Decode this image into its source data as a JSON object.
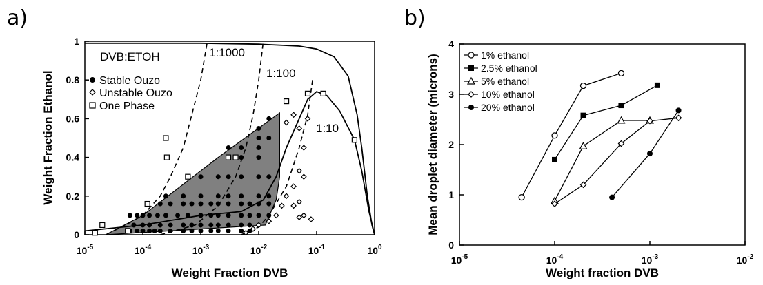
{
  "panel_a": {
    "label": "a)",
    "annotation_header": "DVB:ETOH",
    "ratio_labels": [
      "1:1000",
      "1:100",
      "1:10"
    ]
  },
  "panel_b": {
    "label": "b)"
  },
  "colors": {
    "region_fill": "#808080",
    "ink": "#000000"
  },
  "chart_data": [
    {
      "type": "scatter",
      "xscale": "log",
      "xlim": [
        1e-05,
        1
      ],
      "ylim": [
        0,
        1
      ],
      "xlabel": "Weight Fraction DVB",
      "ylabel": "Weight Fraction Ethanol",
      "xticks": [
        1e-05,
        0.0001,
        0.001,
        0.01,
        0.1,
        1
      ],
      "yticks": [
        0,
        0.2,
        0.4,
        0.6,
        0.8,
        1
      ],
      "legend_placement": "top-left",
      "series": [
        {
          "name": "Stable Ouzo",
          "marker": "filled-circle",
          "points": [
            [
              6e-05,
              0.02
            ],
            [
              8e-05,
              0.02
            ],
            [
              0.0001,
              0.02
            ],
            [
              0.00013,
              0.02
            ],
            [
              0.00016,
              0.02
            ],
            [
              0.0002,
              0.02
            ],
            [
              0.0003,
              0.02
            ],
            [
              0.0005,
              0.02
            ],
            [
              0.0007,
              0.02
            ],
            [
              0.001,
              0.02
            ],
            [
              0.0015,
              0.02
            ],
            [
              0.002,
              0.02
            ],
            [
              0.003,
              0.02
            ],
            [
              0.005,
              0.02
            ],
            [
              0.007,
              0.02
            ],
            [
              7e-05,
              0.05
            ],
            [
              0.0001,
              0.05
            ],
            [
              0.00013,
              0.05
            ],
            [
              0.0002,
              0.05
            ],
            [
              0.0003,
              0.05
            ],
            [
              0.0005,
              0.05
            ],
            [
              0.0007,
              0.05
            ],
            [
              0.001,
              0.05
            ],
            [
              0.0015,
              0.05
            ],
            [
              0.002,
              0.05
            ],
            [
              0.003,
              0.05
            ],
            [
              0.005,
              0.05
            ],
            [
              0.007,
              0.05
            ],
            [
              0.01,
              0.05
            ],
            [
              6e-05,
              0.1
            ],
            [
              8e-05,
              0.1
            ],
            [
              0.0001,
              0.1
            ],
            [
              0.00013,
              0.1
            ],
            [
              0.00018,
              0.1
            ],
            [
              0.00025,
              0.1
            ],
            [
              0.0004,
              0.1
            ],
            [
              0.0006,
              0.1
            ],
            [
              0.001,
              0.1
            ],
            [
              0.0015,
              0.1
            ],
            [
              0.002,
              0.1
            ],
            [
              0.003,
              0.1
            ],
            [
              0.005,
              0.1
            ],
            [
              0.007,
              0.1
            ],
            [
              0.01,
              0.1
            ],
            [
              0.015,
              0.1
            ],
            [
              0.0002,
              0.16
            ],
            [
              0.0003,
              0.16
            ],
            [
              0.0005,
              0.16
            ],
            [
              0.0007,
              0.16
            ],
            [
              0.001,
              0.16
            ],
            [
              0.0015,
              0.16
            ],
            [
              0.002,
              0.16
            ],
            [
              0.003,
              0.16
            ],
            [
              0.005,
              0.16
            ],
            [
              0.007,
              0.16
            ],
            [
              0.01,
              0.16
            ],
            [
              0.015,
              0.16
            ],
            [
              0.00025,
              0.2
            ],
            [
              0.0005,
              0.2
            ],
            [
              0.001,
              0.2
            ],
            [
              0.002,
              0.2
            ],
            [
              0.003,
              0.2
            ],
            [
              0.005,
              0.2
            ],
            [
              0.01,
              0.2
            ],
            [
              0.015,
              0.2
            ],
            [
              0.001,
              0.3
            ],
            [
              0.002,
              0.3
            ],
            [
              0.003,
              0.3
            ],
            [
              0.005,
              0.3
            ],
            [
              0.01,
              0.3
            ],
            [
              0.015,
              0.3
            ],
            [
              0.003,
              0.4
            ],
            [
              0.005,
              0.4
            ],
            [
              0.01,
              0.4
            ],
            [
              0.003,
              0.45
            ],
            [
              0.005,
              0.45
            ],
            [
              0.01,
              0.45
            ],
            [
              0.01,
              0.5
            ],
            [
              0.015,
              0.5
            ],
            [
              0.01,
              0.55
            ],
            [
              0.015,
              0.6
            ]
          ]
        },
        {
          "name": "Unstable Ouzo",
          "marker": "open-diamond",
          "points": [
            [
              0.006,
              0.01
            ],
            [
              0.008,
              0.03
            ],
            [
              0.01,
              0.05
            ],
            [
              0.015,
              0.07
            ],
            [
              0.02,
              0.1
            ],
            [
              0.025,
              0.15
            ],
            [
              0.03,
              0.2
            ],
            [
              0.04,
              0.25
            ],
            [
              0.05,
              0.33
            ],
            [
              0.06,
              0.45
            ],
            [
              0.07,
              0.6
            ],
            [
              0.05,
              0.55
            ],
            [
              0.04,
              0.62
            ],
            [
              0.03,
              0.58
            ],
            [
              0.04,
              0.15
            ],
            [
              0.05,
              0.17
            ],
            [
              0.06,
              0.3
            ],
            [
              0.05,
              0.09
            ],
            [
              0.08,
              0.08
            ],
            [
              0.06,
              0.1
            ]
          ]
        },
        {
          "name": "One Phase",
          "marker": "open-square",
          "points": [
            [
              1.5e-05,
              0.01
            ],
            [
              2e-05,
              0.05
            ],
            [
              5.5e-05,
              0.02
            ],
            [
              0.00012,
              0.16
            ],
            [
              0.00025,
              0.5
            ],
            [
              0.00026,
              0.4
            ],
            [
              0.0006,
              0.3
            ],
            [
              0.003,
              0.4
            ],
            [
              0.004,
              0.4
            ],
            [
              0.03,
              0.69
            ],
            [
              0.07,
              0.73
            ],
            [
              0.13,
              0.73
            ],
            [
              0.45,
              0.49
            ]
          ]
        }
      ],
      "boundary_curve": [
        [
          1e-05,
          0.02
        ],
        [
          0.0001,
          0.05
        ],
        [
          0.001,
          0.1
        ],
        [
          0.005,
          0.12
        ],
        [
          0.012,
          0.18
        ],
        [
          0.02,
          0.3
        ],
        [
          0.03,
          0.45
        ],
        [
          0.05,
          0.6
        ],
        [
          0.07,
          0.7
        ],
        [
          0.1,
          0.74
        ],
        [
          0.15,
          0.72
        ],
        [
          0.25,
          0.64
        ],
        [
          0.45,
          0.49
        ],
        [
          0.6,
          0.33
        ],
        [
          0.8,
          0.12
        ],
        [
          1,
          0
        ]
      ],
      "top_curve": [
        [
          1e-05,
          0.99
        ],
        [
          0.001,
          0.99
        ],
        [
          0.01,
          0.985
        ],
        [
          0.05,
          0.975
        ],
        [
          0.1,
          0.96
        ],
        [
          0.2,
          0.92
        ],
        [
          0.35,
          0.82
        ],
        [
          0.5,
          0.62
        ],
        [
          0.6,
          0.45
        ],
        [
          0.75,
          0.2
        ],
        [
          0.9,
          0.05
        ],
        [
          1,
          0
        ]
      ],
      "dashed_lines": [
        {
          "label": "1:1000",
          "points": [
            [
              2.3e-05,
              0
            ],
            [
              5e-05,
              0.05
            ],
            [
              0.0001,
              0.1
            ],
            [
              0.0002,
              0.2
            ],
            [
              0.0003,
              0.3
            ],
            [
              0.0005,
              0.45
            ],
            [
              0.0007,
              0.62
            ],
            [
              0.001,
              0.8
            ],
            [
              0.0013,
              1
            ]
          ]
        },
        {
          "label": "1:100",
          "points": [
            [
              0.0002,
              0
            ],
            [
              0.0008,
              0.05
            ],
            [
              0.002,
              0.15
            ],
            [
              0.004,
              0.3
            ],
            [
              0.006,
              0.45
            ],
            [
              0.008,
              0.62
            ],
            [
              0.01,
              0.8
            ],
            [
              0.012,
              1
            ]
          ]
        },
        {
          "label": "1:10",
          "points": [
            [
              0.005,
              0
            ],
            [
              0.01,
              0.04
            ],
            [
              0.015,
              0.1
            ],
            [
              0.03,
              0.25
            ],
            [
              0.05,
              0.45
            ],
            [
              0.07,
              0.62
            ],
            [
              0.085,
              0.8
            ]
          ]
        }
      ],
      "stable_region": [
        [
          2.3e-05,
          0
        ],
        [
          0.013,
          0.05
        ],
        [
          0.02,
          0.18
        ],
        [
          0.023,
          0.3
        ],
        [
          0.023,
          0.63
        ],
        [
          0.002,
          0.4
        ],
        [
          0.0001,
          0.1
        ]
      ]
    },
    {
      "type": "line",
      "xscale": "log",
      "xlim": [
        1e-05,
        0.01
      ],
      "ylim": [
        0,
        4
      ],
      "xlabel": "Weight fraction DVB",
      "ylabel": "Mean droplet diameter (microns)",
      "xticks": [
        1e-05,
        0.0001,
        0.001,
        0.01
      ],
      "yticks": [
        0,
        1,
        2,
        3,
        4
      ],
      "legend_placement": "top-left",
      "series": [
        {
          "name": "1% ethanol",
          "marker": "open-circle",
          "x": [
            4.5e-05,
            0.0001,
            0.0002,
            0.0005
          ],
          "y": [
            0.95,
            2.18,
            3.17,
            3.42
          ]
        },
        {
          "name": "2.5% ethanol",
          "marker": "filled-square",
          "x": [
            0.0001,
            0.0002,
            0.0005,
            0.0012
          ],
          "y": [
            1.7,
            2.58,
            2.78,
            3.18
          ]
        },
        {
          "name": "5% ethanol",
          "marker": "open-triangle",
          "x": [
            0.0001,
            0.0002,
            0.0005,
            0.001
          ],
          "y": [
            0.88,
            1.97,
            2.48,
            2.48
          ]
        },
        {
          "name": "10% ethanol",
          "marker": "open-diamond",
          "x": [
            0.0001,
            0.0002,
            0.0005,
            0.001,
            0.002
          ],
          "y": [
            0.82,
            1.2,
            2.02,
            2.47,
            2.53
          ]
        },
        {
          "name": "20% ethanol",
          "marker": "filled-circle",
          "x": [
            0.0004,
            0.001,
            0.002
          ],
          "y": [
            0.95,
            1.82,
            2.68
          ]
        }
      ]
    }
  ]
}
